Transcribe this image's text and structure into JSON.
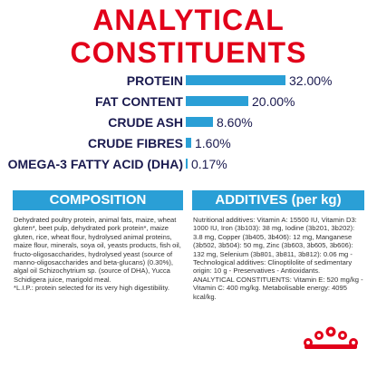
{
  "title": "ANALYTICAL CONSTITUENTS",
  "nutrients": [
    {
      "label": "PROTEIN",
      "value": "32.00%",
      "pct": 32.0
    },
    {
      "label": "FAT CONTENT",
      "value": "20.00%",
      "pct": 20.0
    },
    {
      "label": "CRUDE ASH",
      "value": "8.60%",
      "pct": 8.6
    },
    {
      "label": "CRUDE FIBRES",
      "value": "1.60%",
      "pct": 1.6
    },
    {
      "label": "OMEGA-3 FATTY ACID (DHA)",
      "value": "0.17%",
      "pct": 0.17
    }
  ],
  "composition": {
    "heading": "COMPOSITION",
    "text": "Dehydrated poultry protein, animal fats, maize, wheat gluten*, beet pulp, dehydrated pork protein*, maize gluten, rice, wheat flour, hydrolysed animal proteins, maize flour, minerals, soya oil, yeasts products, fish oil, fructo-oligosaccharides, hydrolysed yeast (source of manno-oligosaccharides and beta-glucans) (0.30%), algal oil Schizochytrium sp. (source of DHA), Yucca Schidigera juice, marigold meal.\n*L.I.P.: protein selected for its very high digestibility."
  },
  "additives": {
    "heading": "ADDITIVES (per kg)",
    "text": "Nutritional additives: Vitamin A: 15500 IU, Vitamin D3: 1000 IU, Iron (3b103): 38 mg, Iodine (3b201, 3b202): 3.8 mg, Copper (3b405, 3b406): 12 mg, Manganese (3b502, 3b504): 50 mg, Zinc (3b603, 3b605, 3b606): 132 mg, Selenium (3b801, 3b811, 3b812): 0.06 mg - Technological additives: Clinoptilolite of sedimentary origin: 10 g - Preservatives - Antioxidants.\nANALYTICAL CONSTITUENTS: Vitamin E: 520 mg/kg - Vitamin C: 400 mg/kg. Metabolisable energy: 4095 kcal/kg."
  },
  "colors": {
    "accent": "#e2001a",
    "bar": "#2a9fd6",
    "text_dark": "#1a1a4f"
  },
  "logo": {
    "name": "crown-logo-icon"
  }
}
